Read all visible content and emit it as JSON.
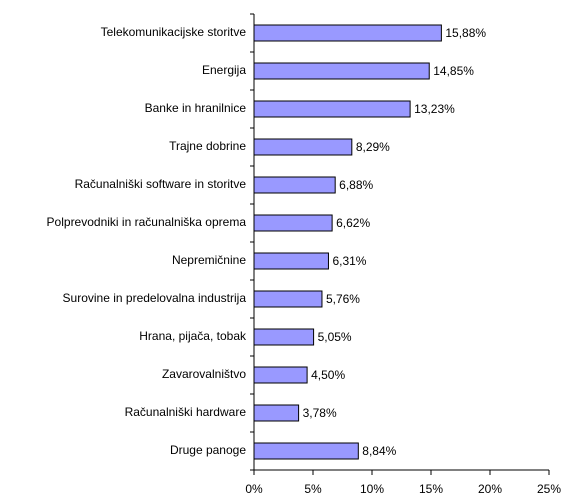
{
  "chart_data": {
    "type": "bar",
    "orientation": "horizontal",
    "categories": [
      "Telekomunikacijske storitve",
      "Energija",
      "Banke in hranilnice",
      "Trajne dobrine",
      "Računalniški software in storitve",
      "Polprevodniki in računalniška oprema",
      "Nepremičnine",
      "Surovine in predelovalna industrija",
      "Hrana, pijača, tobak",
      "Zavarovalništvo",
      "Računalniški hardware",
      "Druge panoge"
    ],
    "values": [
      15.88,
      14.85,
      13.23,
      8.29,
      6.88,
      6.62,
      6.31,
      5.76,
      5.05,
      4.5,
      3.78,
      8.84
    ],
    "value_labels": [
      "15,88%",
      "14,85%",
      "13,23%",
      "8,29%",
      "6,88%",
      "6,62%",
      "6,31%",
      "5,76%",
      "5,05%",
      "4,50%",
      "3,78%",
      "8,84%"
    ],
    "color": "#9999ff",
    "xlim": [
      0,
      25
    ],
    "xticks": [
      {
        "value": 0,
        "label": "0%"
      },
      {
        "value": 5,
        "label": "5%"
      },
      {
        "value": 10,
        "label": "10%"
      },
      {
        "value": 15,
        "label": "15%"
      },
      {
        "value": 20,
        "label": "20%"
      },
      {
        "value": 25,
        "label": "25%"
      }
    ],
    "grid": false
  }
}
